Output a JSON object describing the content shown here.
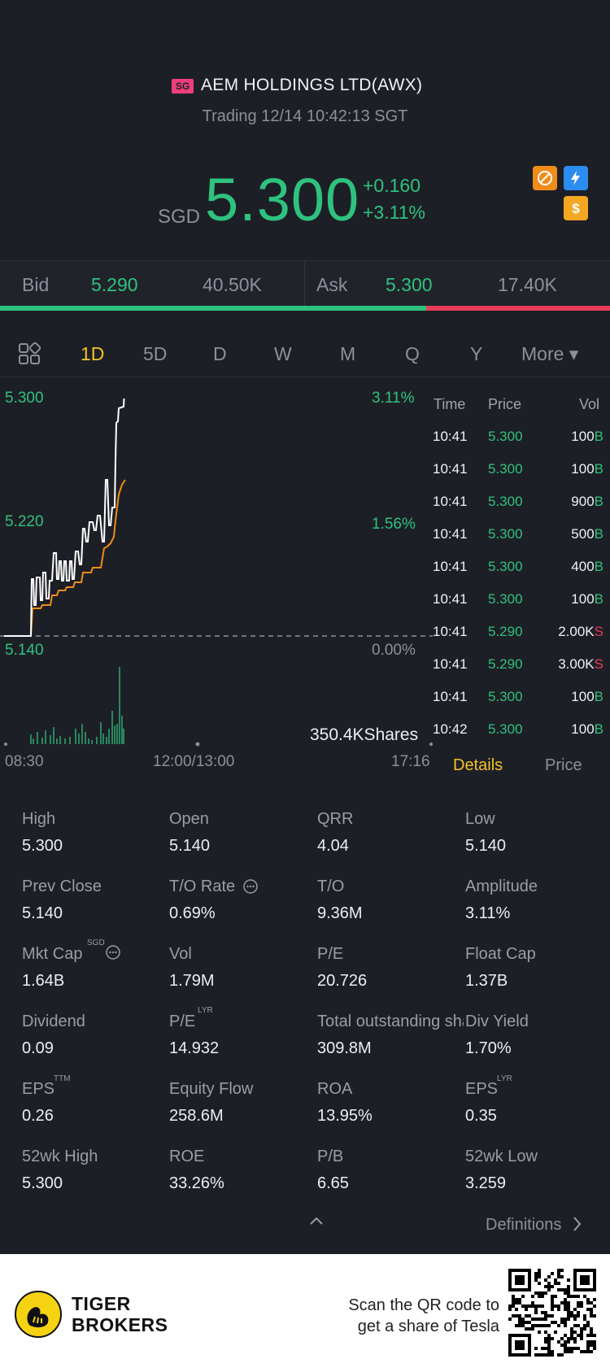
{
  "header": {
    "market_badge": "SG",
    "company": "AEM HOLDINGS LTD(AWX)",
    "status": "Trading 12/14 10:42:13 SGT",
    "currency": "SGD",
    "price": "5.300",
    "change": "+0.160",
    "change_pct": "+3.11%"
  },
  "bidask": {
    "bid_label": "Bid",
    "bid_price": "5.290",
    "bid_size": "40.50K",
    "ask_label": "Ask",
    "ask_price": "5.300",
    "ask_size": "17.40K",
    "bid_share": 0.7
  },
  "tabs": [
    "1D",
    "5D",
    "D",
    "W",
    "M",
    "Q",
    "Y",
    "More ▾"
  ],
  "active_tab": "1D",
  "chart": {
    "y_high": "5.300",
    "y_mid": "5.220",
    "y_low": "5.140",
    "pct_high": "3.11%",
    "pct_mid": "1.56%",
    "pct_low": "0.00%",
    "volume_label": "350.4KShares",
    "time_start": "08:30",
    "time_mid": "12:00/13:00",
    "time_end": "17:16",
    "line_color": "#ffffff",
    "avg_color": "#f08c1a",
    "volume_color": "#2ec27e"
  },
  "trades": {
    "headers": {
      "time": "Time",
      "price": "Price",
      "vol": "Vol"
    },
    "rows": [
      {
        "time": "10:41",
        "price": "5.300",
        "vol": "100",
        "flag": "B"
      },
      {
        "time": "10:41",
        "price": "5.300",
        "vol": "100",
        "flag": "B"
      },
      {
        "time": "10:41",
        "price": "5.300",
        "vol": "900",
        "flag": "B"
      },
      {
        "time": "10:41",
        "price": "5.300",
        "vol": "500",
        "flag": "B"
      },
      {
        "time": "10:41",
        "price": "5.300",
        "vol": "400",
        "flag": "B"
      },
      {
        "time": "10:41",
        "price": "5.300",
        "vol": "100",
        "flag": "B"
      },
      {
        "time": "10:41",
        "price": "5.290",
        "vol": "2.00K",
        "flag": "S"
      },
      {
        "time": "10:41",
        "price": "5.290",
        "vol": "3.00K",
        "flag": "S"
      },
      {
        "time": "10:41",
        "price": "5.300",
        "vol": "100",
        "flag": "B"
      },
      {
        "time": "10:42",
        "price": "5.300",
        "vol": "100",
        "flag": "B"
      }
    ]
  },
  "detail_tabs": {
    "details": "Details",
    "price": "Price"
  },
  "stats": [
    {
      "label": "High",
      "value": "5.300"
    },
    {
      "label": "Open",
      "value": "5.140"
    },
    {
      "label": "QRR",
      "value": "4.04"
    },
    {
      "label": "Low",
      "value": "5.140"
    },
    {
      "label": "Prev Close",
      "value": "5.140"
    },
    {
      "label": "T/O Rate",
      "value": "0.69%"
    },
    {
      "label": "T/O",
      "value": "9.36M"
    },
    {
      "label": "Amplitude",
      "value": "3.11%"
    },
    {
      "label": "Mkt Cap",
      "value": "1.64B"
    },
    {
      "label": "Vol",
      "value": "1.79M"
    },
    {
      "label": "P/E",
      "value": "20.726"
    },
    {
      "label": "Float Cap",
      "value": "1.37B"
    },
    {
      "label": "Dividend",
      "value": "0.09"
    },
    {
      "label": "P/E",
      "value": "14.932"
    },
    {
      "label": "Total outstanding shares",
      "value": "309.8M"
    },
    {
      "label": "Div Yield",
      "value": "1.70%"
    },
    {
      "label": "EPS",
      "value": "0.26"
    },
    {
      "label": "Equity Flow",
      "value": "258.6M"
    },
    {
      "label": "ROA",
      "value": "13.95%"
    },
    {
      "label": "EPS",
      "value": "0.35"
    },
    {
      "label": "52wk High",
      "value": "5.300"
    },
    {
      "label": "ROE",
      "value": "33.26%"
    },
    {
      "label": "P/B",
      "value": "6.65"
    },
    {
      "label": "52wk Low",
      "value": "3.259"
    }
  ],
  "superscripts": {
    "mkt_cap": "SGD",
    "pe_lyr": "LYR",
    "eps_ttm": "TTM",
    "eps_lyr": "LYR"
  },
  "definitions": "Definitions",
  "footer": {
    "brand_line1": "TIGER",
    "brand_line2": "BROKERS",
    "scan_line1": "Scan the QR code to",
    "scan_line2": "get a share of Tesla"
  }
}
